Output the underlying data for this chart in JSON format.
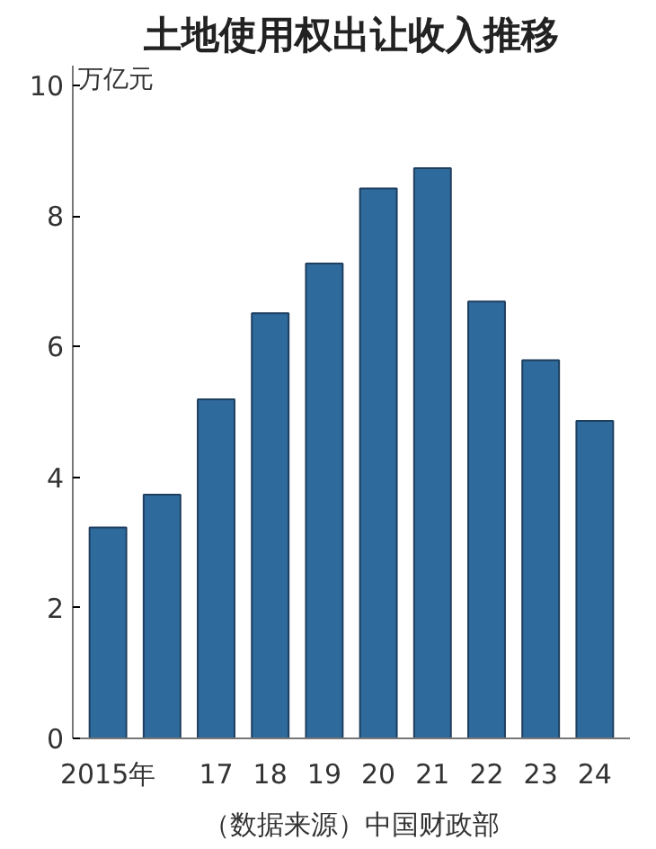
{
  "chart_data": {
    "type": "bar",
    "title": "土地使用权出让收入推移",
    "ylabel": "万亿元",
    "categories": [
      "2015年",
      null,
      "17",
      "18",
      "19",
      "20",
      "21",
      "22",
      "23",
      "24"
    ],
    "values": [
      3.23,
      3.73,
      5.19,
      6.51,
      7.27,
      8.42,
      8.73,
      6.69,
      5.79,
      4.86
    ],
    "color": "#2f6a9c",
    "ylim": [
      0,
      10.3
    ],
    "yticks": [
      0,
      2,
      4,
      6,
      8,
      10
    ],
    "grid": false,
    "annotations": [
      "（数据来源）中国财政部"
    ]
  }
}
